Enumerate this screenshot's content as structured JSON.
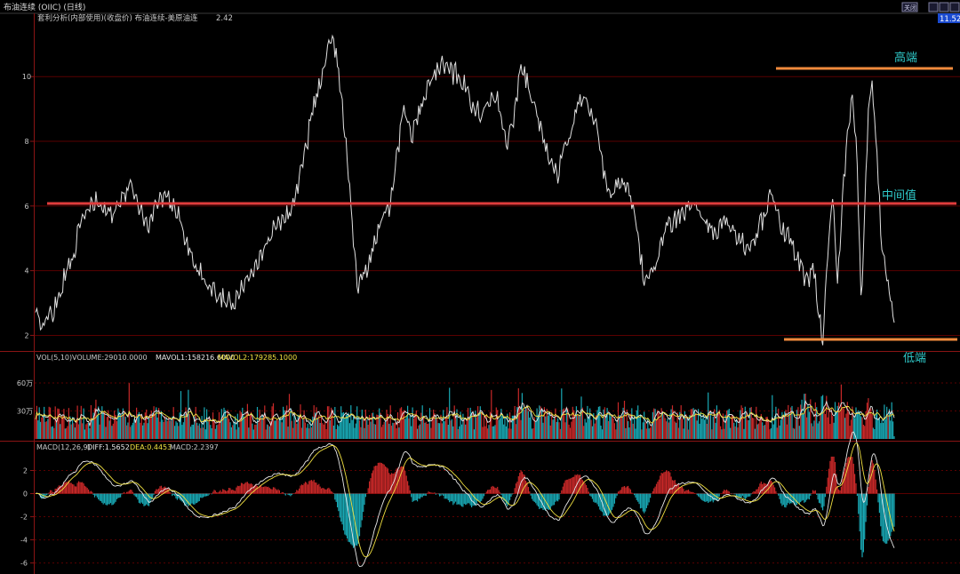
{
  "window": {
    "title": "布油连续 (OIIC) (日线)",
    "buttons": [
      "关闭",
      "▭",
      "▭",
      "▭"
    ],
    "price_badge": "11.52"
  },
  "colors": {
    "background": "#000000",
    "price_line": "#e0e0e0",
    "mid_line": "#e03c3c",
    "band_line": "#f08a3c",
    "annotation": "#2fc8c8",
    "up_bar": "#c82828",
    "down_bar": "#19a8b4",
    "mavol1": "#e8e8e8",
    "mavol2": "#f0e040",
    "diff": "#e8e8e8",
    "dea": "#f0e040",
    "grid": "#5a0000",
    "separator": "#8a1414"
  },
  "main_panel": {
    "title": "套利分析(内部使用)(收盘价) 布油连续-美原油连",
    "value": "2.42",
    "annotations": {
      "high": "高端",
      "mid": "中间值",
      "low": "低端"
    }
  },
  "volume_panel": {
    "title": "VOL(5,10)",
    "volume": "VOLUME:29010.0000",
    "mavol1": "MAVOL1:158216.6000",
    "mavol2": "MAVOL2:179285.1000"
  },
  "macd_panel": {
    "title": "MACD(12,26,9)",
    "diff": "DIFF:1.5652",
    "dea": "DEA:0.4453",
    "macd": "MACD:2.2397"
  },
  "chart_data": [
    {
      "type": "line",
      "name": "price",
      "title": "套利分析(内部使用)(收盘价) 布油连续-美原油连",
      "ylim": [
        1.6,
        11.6
      ],
      "y_ticks": [
        "2",
        "4",
        "6",
        "8",
        "10"
      ],
      "grid": true,
      "reference_lines": [
        {
          "label": "高端",
          "y": 10.1
        },
        {
          "label": "中间值",
          "y": 5.95
        },
        {
          "label": "低端",
          "y": 1.75
        }
      ],
      "anchors": [
        [
          0,
          2.6
        ],
        [
          5,
          2.3
        ],
        [
          15,
          2.8
        ],
        [
          22,
          3.6
        ],
        [
          30,
          4.5
        ],
        [
          40,
          5.8
        ],
        [
          50,
          6.1
        ],
        [
          60,
          5.7
        ],
        [
          70,
          6.3
        ],
        [
          78,
          6.7
        ],
        [
          85,
          5.9
        ],
        [
          92,
          5.4
        ],
        [
          100,
          6.3
        ],
        [
          110,
          6.1
        ],
        [
          118,
          5.6
        ],
        [
          125,
          4.6
        ],
        [
          135,
          3.8
        ],
        [
          145,
          3.4
        ],
        [
          155,
          3.1
        ],
        [
          162,
          3.0
        ],
        [
          170,
          3.8
        ],
        [
          180,
          4.3
        ],
        [
          190,
          5.0
        ],
        [
          198,
          5.6
        ],
        [
          205,
          5.7
        ],
        [
          212,
          6.5
        ],
        [
          218,
          7.5
        ],
        [
          224,
          8.8
        ],
        [
          230,
          9.7
        ],
        [
          236,
          10.5
        ],
        [
          241,
          11.3
        ],
        [
          244,
          10.8
        ],
        [
          247,
          9.7
        ],
        [
          251,
          8.4
        ],
        [
          256,
          6.0
        ],
        [
          262,
          3.4
        ],
        [
          268,
          4.0
        ],
        [
          274,
          4.7
        ],
        [
          280,
          5.4
        ],
        [
          287,
          5.9
        ],
        [
          293,
          7.5
        ],
        [
          299,
          9.0
        ],
        [
          305,
          8.2
        ],
        [
          312,
          8.9
        ],
        [
          320,
          9.8
        ],
        [
          328,
          10.4
        ],
        [
          336,
          10.2
        ],
        [
          344,
          10.0
        ],
        [
          350,
          9.6
        ],
        [
          357,
          9.0
        ],
        [
          364,
          8.8
        ],
        [
          370,
          9.6
        ],
        [
          376,
          9.2
        ],
        [
          382,
          7.8
        ],
        [
          388,
          8.6
        ],
        [
          394,
          10.4
        ],
        [
          400,
          9.8
        ],
        [
          406,
          9.0
        ],
        [
          412,
          8.2
        ],
        [
          418,
          7.4
        ],
        [
          424,
          7.0
        ],
        [
          430,
          7.8
        ],
        [
          436,
          8.4
        ],
        [
          442,
          9.4
        ],
        [
          448,
          9.3
        ],
        [
          454,
          8.6
        ],
        [
          460,
          7.3
        ],
        [
          466,
          6.3
        ],
        [
          472,
          6.6
        ],
        [
          478,
          6.8
        ],
        [
          484,
          6.2
        ],
        [
          490,
          4.8
        ],
        [
          494,
          3.6
        ],
        [
          500,
          3.8
        ],
        [
          506,
          4.5
        ],
        [
          512,
          5.3
        ],
        [
          520,
          5.6
        ],
        [
          528,
          5.9
        ],
        [
          536,
          5.9
        ],
        [
          544,
          5.5
        ],
        [
          552,
          5.2
        ],
        [
          560,
          5.6
        ],
        [
          568,
          5.1
        ],
        [
          576,
          4.7
        ],
        [
          584,
          5.0
        ],
        [
          592,
          5.8
        ],
        [
          597,
          6.5
        ],
        [
          602,
          5.9
        ],
        [
          607,
          5.2
        ],
        [
          612,
          4.9
        ],
        [
          617,
          4.6
        ],
        [
          622,
          4.0
        ],
        [
          627,
          3.7
        ],
        [
          631,
          4.2
        ],
        [
          635,
          3.0
        ],
        [
          639,
          1.9
        ],
        [
          643,
          4.5
        ],
        [
          647,
          6.2
        ],
        [
          651,
          3.4
        ],
        [
          655,
          6.3
        ],
        [
          659,
          8.2
        ],
        [
          663,
          9.5
        ],
        [
          667,
          7.2
        ],
        [
          670,
          3.0
        ],
        [
          673,
          5.5
        ],
        [
          676,
          9.0
        ],
        [
          679,
          10.0
        ],
        [
          682,
          8.3
        ],
        [
          686,
          5.2
        ],
        [
          690,
          4.0
        ],
        [
          694,
          3.2
        ],
        [
          697,
          2.4
        ]
      ]
    },
    {
      "type": "bar",
      "name": "volume",
      "title": "VOL(5,10)",
      "y_ticks": [
        "30万",
        "60万"
      ],
      "ylim": [
        0,
        80
      ],
      "unit": "万",
      "typical_range": [
        10,
        45
      ],
      "last_value": 2.901
    },
    {
      "type": "line",
      "name": "macd",
      "title": "MACD(12,26,9)",
      "ylim": [
        -6.8,
        3.5
      ],
      "y_ticks": [
        "2",
        "0",
        "-2",
        "-4",
        "-6"
      ],
      "series": [
        {
          "name": "DIFF",
          "last": 1.5652
        },
        {
          "name": "DEA",
          "last": 0.4453
        },
        {
          "name": "MACD",
          "last": 2.2397
        }
      ]
    }
  ]
}
